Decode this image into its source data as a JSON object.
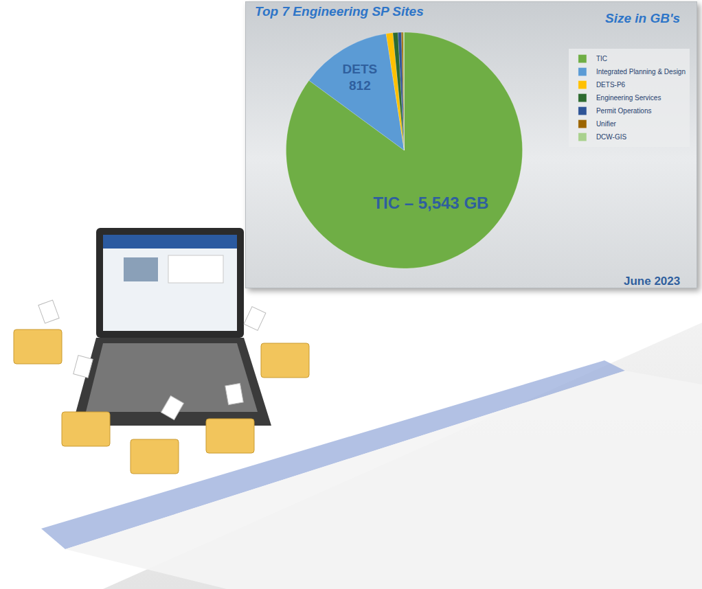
{
  "chart_data": {
    "type": "pie",
    "title": "Top 7 Engineering SP Sites",
    "subtitle": "Size in GB's",
    "annotations": [
      "June 2023"
    ],
    "categories": [
      "TIC",
      "Integrated Planning & Design",
      "DETS-P6",
      "Engineering Services",
      "Permit Operations",
      "Unifier",
      "DCW-GIS"
    ],
    "values": [
      5543,
      812,
      60,
      45,
      30,
      15,
      10
    ],
    "value_labels": [
      "TIC – 5,543 GB",
      "DETS\n812",
      null,
      null,
      null,
      null,
      null
    ],
    "colors": [
      "#6fae45",
      "#5b9bd5",
      "#ffc000",
      "#2e6b30",
      "#2f5597",
      "#9c6500",
      "#a9d18e"
    ],
    "legend": "right",
    "data_labels": true
  }
}
